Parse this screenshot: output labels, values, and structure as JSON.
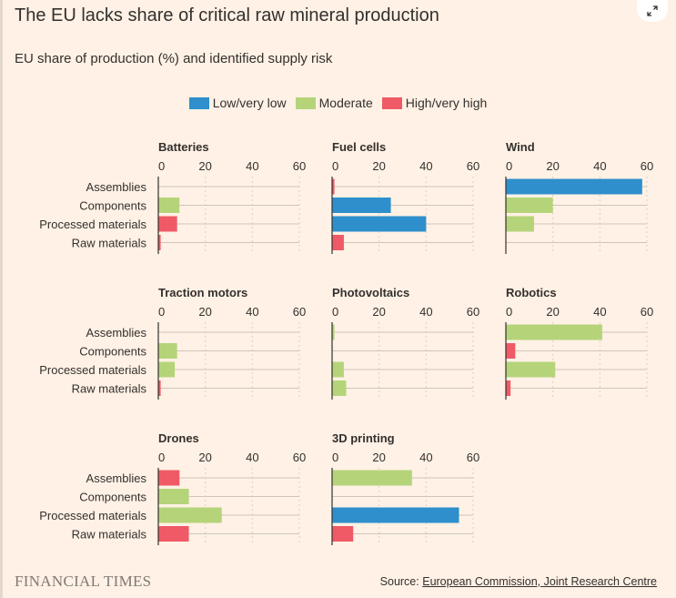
{
  "title": "The EU lacks share of critical raw mineral production",
  "subtitle": "EU share of production (%) and identified supply risk",
  "legend": [
    {
      "label": "Low/very low",
      "color": "#2e8fcc"
    },
    {
      "label": "Moderate",
      "color": "#b5d47a"
    },
    {
      "label": "High/very high",
      "color": "#ef5a66"
    }
  ],
  "footer": {
    "brand": "FINANCIAL TIMES",
    "source_prefix": "Source:",
    "source_link": "European Commission, Joint Research Centre"
  },
  "icons": {
    "expand": "expand-arrows-icon"
  },
  "chart_data": {
    "type": "bar",
    "orientation": "horizontal",
    "xlim": [
      0,
      60
    ],
    "ticks": [
      0,
      20,
      40,
      60
    ],
    "categories": [
      "Assemblies",
      "Components",
      "Processed materials",
      "Raw materials"
    ],
    "panels": [
      {
        "title": "Batteries",
        "values": [
          0,
          9,
          8,
          1
        ],
        "risk": [
          "",
          "moderate",
          "high",
          "high"
        ]
      },
      {
        "title": "Fuel cells",
        "values": [
          1,
          25,
          40,
          5
        ],
        "risk": [
          "high",
          "low",
          "low",
          "high"
        ]
      },
      {
        "title": "Wind",
        "values": [
          58,
          20,
          12,
          0
        ],
        "risk": [
          "low",
          "moderate",
          "moderate",
          ""
        ]
      },
      {
        "title": "Traction motors",
        "values": [
          0,
          8,
          7,
          1
        ],
        "risk": [
          "",
          "moderate",
          "moderate",
          "high"
        ]
      },
      {
        "title": "Photovoltaics",
        "values": [
          1,
          0,
          5,
          6
        ],
        "risk": [
          "moderate",
          "",
          "moderate",
          "moderate"
        ]
      },
      {
        "title": "Robotics",
        "values": [
          41,
          4,
          21,
          2
        ],
        "risk": [
          "moderate",
          "high",
          "moderate",
          "high"
        ]
      },
      {
        "title": "Drones",
        "values": [
          9,
          13,
          27,
          13
        ],
        "risk": [
          "high",
          "moderate",
          "moderate",
          "high"
        ]
      },
      {
        "title": "3D printing",
        "values": [
          34,
          0,
          54,
          9
        ],
        "risk": [
          "moderate",
          "",
          "low",
          "high"
        ]
      }
    ]
  }
}
